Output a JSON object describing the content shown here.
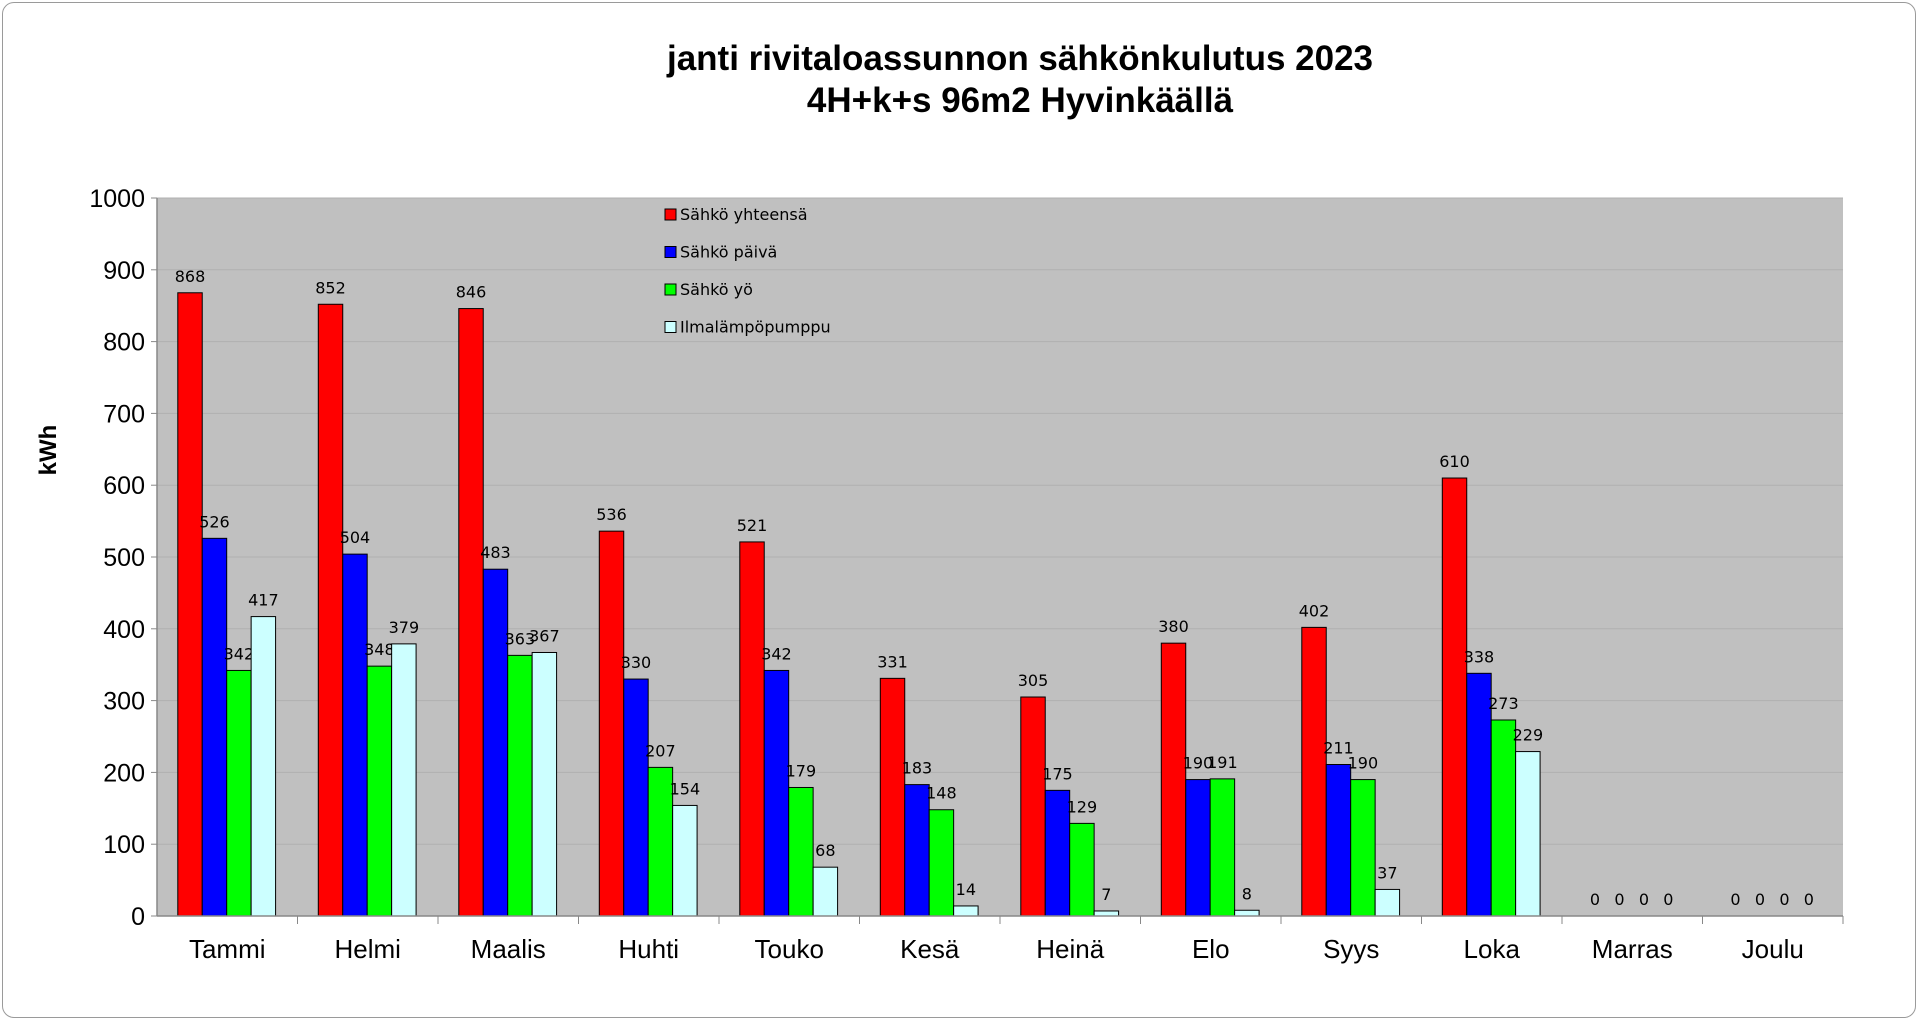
{
  "chart_data": {
    "type": "bar",
    "title": [
      "janti rivitaloassunnon sähkönkulutus 2023",
      "4H+k+s 96m2 Hyvinkäällä"
    ],
    "xlabel": "",
    "ylabel": "kWh",
    "ylim": [
      0,
      1000
    ],
    "yticks": [
      0,
      100,
      200,
      300,
      400,
      500,
      600,
      700,
      800,
      900,
      1000
    ],
    "grid": true,
    "legend_position": "top-center",
    "categories": [
      "Tammi",
      "Helmi",
      "Maalis",
      "Huhti",
      "Touko",
      "Kesä",
      "Heinä",
      "Elo",
      "Syys",
      "Loka",
      "Marras",
      "Joulu"
    ],
    "series": [
      {
        "name": "Sähkö yhteensä",
        "color": "#ff0000",
        "values": [
          868,
          852,
          846,
          536,
          521,
          331,
          305,
          380,
          402,
          610,
          0,
          0
        ]
      },
      {
        "name": "Sähkö päivä",
        "color": "#0000ff",
        "values": [
          526,
          504,
          483,
          330,
          342,
          183,
          175,
          190,
          211,
          338,
          0,
          0
        ]
      },
      {
        "name": "Sähkö yö",
        "color": "#00ff00",
        "values": [
          342,
          348,
          363,
          207,
          179,
          148,
          129,
          191,
          190,
          273,
          0,
          0
        ]
      },
      {
        "name": "Ilmalämpöpumppu",
        "color": "#ccffff",
        "values": [
          417,
          379,
          367,
          154,
          68,
          14,
          7,
          8,
          37,
          229,
          0,
          0
        ]
      }
    ]
  },
  "colors": {
    "plot_bg": "#c0c0c0",
    "grid": "#b0b0b0"
  }
}
